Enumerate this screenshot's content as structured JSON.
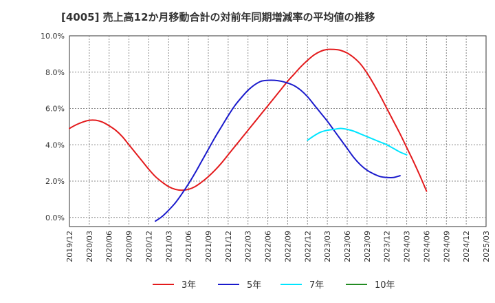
{
  "title": "[4005]  売上高12か月移動合計の対前年同期増減率の平均値の推移",
  "chart_data": {
    "type": "line",
    "title": "[4005]  売上高12か月移動合計の対前年同期増減率の平均値の推移",
    "xlabel": "",
    "ylabel": "",
    "ylim": [
      -0.5,
      10.0
    ],
    "y_ticks": [
      "0.0%",
      "2.0%",
      "4.0%",
      "6.0%",
      "8.0%",
      "10.0%"
    ],
    "y_tick_values": [
      0,
      2,
      4,
      6,
      8,
      10
    ],
    "x_ticks": [
      "2019/12",
      "2020/03",
      "2020/06",
      "2020/09",
      "2020/12",
      "2021/03",
      "2021/06",
      "2021/09",
      "2021/12",
      "2022/03",
      "2022/06",
      "2022/09",
      "2022/12",
      "2023/03",
      "2023/06",
      "2023/09",
      "2023/12",
      "2024/03",
      "2024/06",
      "2024/09",
      "2024/12",
      "2025/03"
    ],
    "grid": true,
    "legend_position": "bottom",
    "series": [
      {
        "name": "3年",
        "color": "#e31a1c",
        "points": [
          [
            "2019/12",
            4.9
          ],
          [
            "2020/01",
            5.1
          ],
          [
            "2020/02",
            5.25
          ],
          [
            "2020/03",
            5.35
          ],
          [
            "2020/04",
            5.35
          ],
          [
            "2020/05",
            5.25
          ],
          [
            "2020/06",
            5.05
          ],
          [
            "2020/07",
            4.8
          ],
          [
            "2020/08",
            4.45
          ],
          [
            "2020/09",
            4.0
          ],
          [
            "2020/10",
            3.55
          ],
          [
            "2020/11",
            3.1
          ],
          [
            "2020/12",
            2.65
          ],
          [
            "2021/01",
            2.25
          ],
          [
            "2021/02",
            1.95
          ],
          [
            "2021/03",
            1.7
          ],
          [
            "2021/04",
            1.55
          ],
          [
            "2021/05",
            1.5
          ],
          [
            "2021/06",
            1.55
          ],
          [
            "2021/07",
            1.7
          ],
          [
            "2021/08",
            1.95
          ],
          [
            "2021/09",
            2.25
          ],
          [
            "2021/10",
            2.6
          ],
          [
            "2021/11",
            3.0
          ],
          [
            "2021/12",
            3.45
          ],
          [
            "2022/01",
            3.9
          ],
          [
            "2022/02",
            4.35
          ],
          [
            "2022/03",
            4.8
          ],
          [
            "2022/04",
            5.25
          ],
          [
            "2022/05",
            5.7
          ],
          [
            "2022/06",
            6.15
          ],
          [
            "2022/07",
            6.6
          ],
          [
            "2022/08",
            7.05
          ],
          [
            "2022/09",
            7.5
          ],
          [
            "2022/10",
            7.9
          ],
          [
            "2022/11",
            8.3
          ],
          [
            "2022/12",
            8.65
          ],
          [
            "2023/01",
            8.95
          ],
          [
            "2023/02",
            9.15
          ],
          [
            "2023/03",
            9.25
          ],
          [
            "2023/04",
            9.25
          ],
          [
            "2023/05",
            9.2
          ],
          [
            "2023/06",
            9.05
          ],
          [
            "2023/07",
            8.8
          ],
          [
            "2023/08",
            8.45
          ],
          [
            "2023/09",
            7.95
          ],
          [
            "2023/10",
            7.35
          ],
          [
            "2023/11",
            6.7
          ],
          [
            "2023/12",
            6.0
          ],
          [
            "2024/01",
            5.3
          ],
          [
            "2024/02",
            4.6
          ],
          [
            "2024/03",
            3.85
          ],
          [
            "2024/04",
            3.1
          ],
          [
            "2024/05",
            2.3
          ],
          [
            "2024/06",
            1.45
          ]
        ]
      },
      {
        "name": "5年",
        "color": "#1a1acc",
        "points": [
          [
            "2021/01",
            -0.2
          ],
          [
            "2021/02",
            0.05
          ],
          [
            "2021/03",
            0.4
          ],
          [
            "2021/04",
            0.8
          ],
          [
            "2021/05",
            1.3
          ],
          [
            "2021/06",
            1.85
          ],
          [
            "2021/07",
            2.45
          ],
          [
            "2021/08",
            3.1
          ],
          [
            "2021/09",
            3.75
          ],
          [
            "2021/10",
            4.4
          ],
          [
            "2021/11",
            5.0
          ],
          [
            "2021/12",
            5.6
          ],
          [
            "2022/01",
            6.15
          ],
          [
            "2022/02",
            6.6
          ],
          [
            "2022/03",
            7.0
          ],
          [
            "2022/04",
            7.3
          ],
          [
            "2022/05",
            7.5
          ],
          [
            "2022/06",
            7.55
          ],
          [
            "2022/07",
            7.55
          ],
          [
            "2022/08",
            7.5
          ],
          [
            "2022/09",
            7.4
          ],
          [
            "2022/10",
            7.25
          ],
          [
            "2022/11",
            7.0
          ],
          [
            "2022/12",
            6.65
          ],
          [
            "2023/01",
            6.2
          ],
          [
            "2023/02",
            5.75
          ],
          [
            "2023/03",
            5.3
          ],
          [
            "2023/04",
            4.8
          ],
          [
            "2023/05",
            4.3
          ],
          [
            "2023/06",
            3.8
          ],
          [
            "2023/07",
            3.3
          ],
          [
            "2023/08",
            2.9
          ],
          [
            "2023/09",
            2.6
          ],
          [
            "2023/10",
            2.4
          ],
          [
            "2023/11",
            2.25
          ],
          [
            "2023/12",
            2.2
          ],
          [
            "2024/01",
            2.2
          ],
          [
            "2024/02",
            2.3
          ]
        ]
      },
      {
        "name": "7年",
        "color": "#00e5ff",
        "points": [
          [
            "2022/12",
            4.25
          ],
          [
            "2023/01",
            4.5
          ],
          [
            "2023/02",
            4.7
          ],
          [
            "2023/03",
            4.8
          ],
          [
            "2023/04",
            4.85
          ],
          [
            "2023/05",
            4.9
          ],
          [
            "2023/06",
            4.85
          ],
          [
            "2023/07",
            4.75
          ],
          [
            "2023/08",
            4.6
          ],
          [
            "2023/09",
            4.45
          ],
          [
            "2023/10",
            4.3
          ],
          [
            "2023/11",
            4.15
          ],
          [
            "2023/12",
            4.0
          ],
          [
            "2024/01",
            3.8
          ],
          [
            "2024/02",
            3.6
          ],
          [
            "2024/03",
            3.45
          ]
        ]
      },
      {
        "name": "10年",
        "color": "#228b22",
        "points": []
      }
    ]
  }
}
